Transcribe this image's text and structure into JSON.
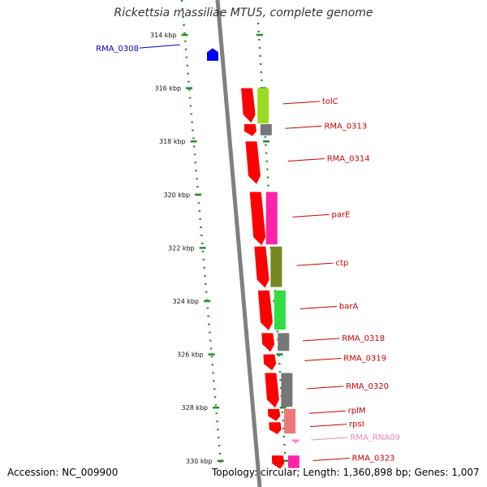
{
  "title": "Rickettsia massiliae MTU5, complete genome",
  "footer": {
    "accession": "Accession: NC_009900",
    "summary": "Topology: circular; Length: 1,360,898 bp; Genes: 1,007"
  },
  "ruler": {
    "ticks": [
      {
        "kbp": 314,
        "label": "314 kbp"
      },
      {
        "kbp": 316,
        "label": "316 kbp"
      },
      {
        "kbp": 318,
        "label": "318 kbp"
      },
      {
        "kbp": 320,
        "label": "320 kbp"
      },
      {
        "kbp": 322,
        "label": "322 kbp"
      },
      {
        "kbp": 324,
        "label": "324 kbp"
      },
      {
        "kbp": 326,
        "label": "326 kbp"
      },
      {
        "kbp": 328,
        "label": "328 kbp"
      },
      {
        "kbp": 330,
        "label": "330 kbp"
      }
    ]
  },
  "colors": {
    "cds": "#ff0000",
    "backbone": "#808080",
    "ruler": "#2a8a2a",
    "label_red": "#cc0000",
    "label_blue": "#0000cc",
    "label_pink": "#ee88bb"
  },
  "features": [
    {
      "name": "RMA_0308",
      "start": 314.5,
      "end": 314.85,
      "track": "reverse",
      "fill": "#0000ff",
      "label_color": "#0000cc"
    },
    {
      "name": "tolC",
      "start": 316.0,
      "end": 317.3,
      "track": "forward",
      "fill": "#ff0000",
      "label_color": "#cc0000"
    },
    {
      "name": "RMA_0313",
      "start": 317.35,
      "end": 317.8,
      "track": "forward",
      "fill": "#ff0000",
      "label_color": "#cc0000"
    },
    {
      "name": "RMA_0314",
      "start": 318.0,
      "end": 319.6,
      "track": "forward",
      "fill": "#ff0000",
      "label_color": "#cc0000"
    },
    {
      "name": "parE",
      "start": 319.9,
      "end": 321.9,
      "track": "forward",
      "fill": "#ff0000",
      "label_color": "#cc0000"
    },
    {
      "name": "ctp",
      "start": 321.95,
      "end": 323.5,
      "track": "forward",
      "fill": "#ff0000",
      "label_color": "#cc0000"
    },
    {
      "name": "barA",
      "start": 323.6,
      "end": 325.1,
      "track": "forward",
      "fill": "#ff0000",
      "label_color": "#cc0000"
    },
    {
      "name": "RMA_0318",
      "start": 325.2,
      "end": 325.9,
      "track": "forward",
      "fill": "#ff0000",
      "label_color": "#cc0000"
    },
    {
      "name": "RMA_0319",
      "start": 326.0,
      "end": 326.6,
      "track": "forward",
      "fill": "#ff0000",
      "label_color": "#cc0000"
    },
    {
      "name": "RMA_0320",
      "start": 326.7,
      "end": 328.0,
      "track": "forward",
      "fill": "#ff0000",
      "label_color": "#cc0000"
    },
    {
      "name": "rplM",
      "start": 328.05,
      "end": 328.5,
      "track": "forward",
      "fill": "#ff0000",
      "label_color": "#cc0000"
    },
    {
      "name": "rpsI",
      "start": 328.55,
      "end": 329.0,
      "track": "forward",
      "fill": "#ff0000",
      "label_color": "#cc0000"
    },
    {
      "name": "RMA_RNA09",
      "start": 329.2,
      "end": 329.35,
      "track": "forward",
      "fill": "#ff88cc",
      "label_color": "#ee88bb"
    },
    {
      "name": "RMA_0323",
      "start": 329.8,
      "end": 330.3,
      "track": "forward",
      "fill": "#ff0000",
      "label_color": "#cc0000"
    }
  ],
  "cog_blocks": [
    {
      "start": 316.0,
      "end": 317.35,
      "color": "#99dd22"
    },
    {
      "start": 317.35,
      "end": 317.8,
      "color": "#777777"
    },
    {
      "start": 319.9,
      "end": 321.9,
      "color": "#ff22aa"
    },
    {
      "start": 321.95,
      "end": 323.5,
      "color": "#778822"
    },
    {
      "start": 323.6,
      "end": 325.1,
      "color": "#33dd44"
    },
    {
      "start": 325.2,
      "end": 325.9,
      "color": "#777777"
    },
    {
      "start": 326.7,
      "end": 328.0,
      "color": "#777777"
    },
    {
      "start": 328.05,
      "end": 329.0,
      "color": "#ee7777"
    },
    {
      "start": 329.8,
      "end": 330.3,
      "color": "#ff22aa"
    }
  ]
}
